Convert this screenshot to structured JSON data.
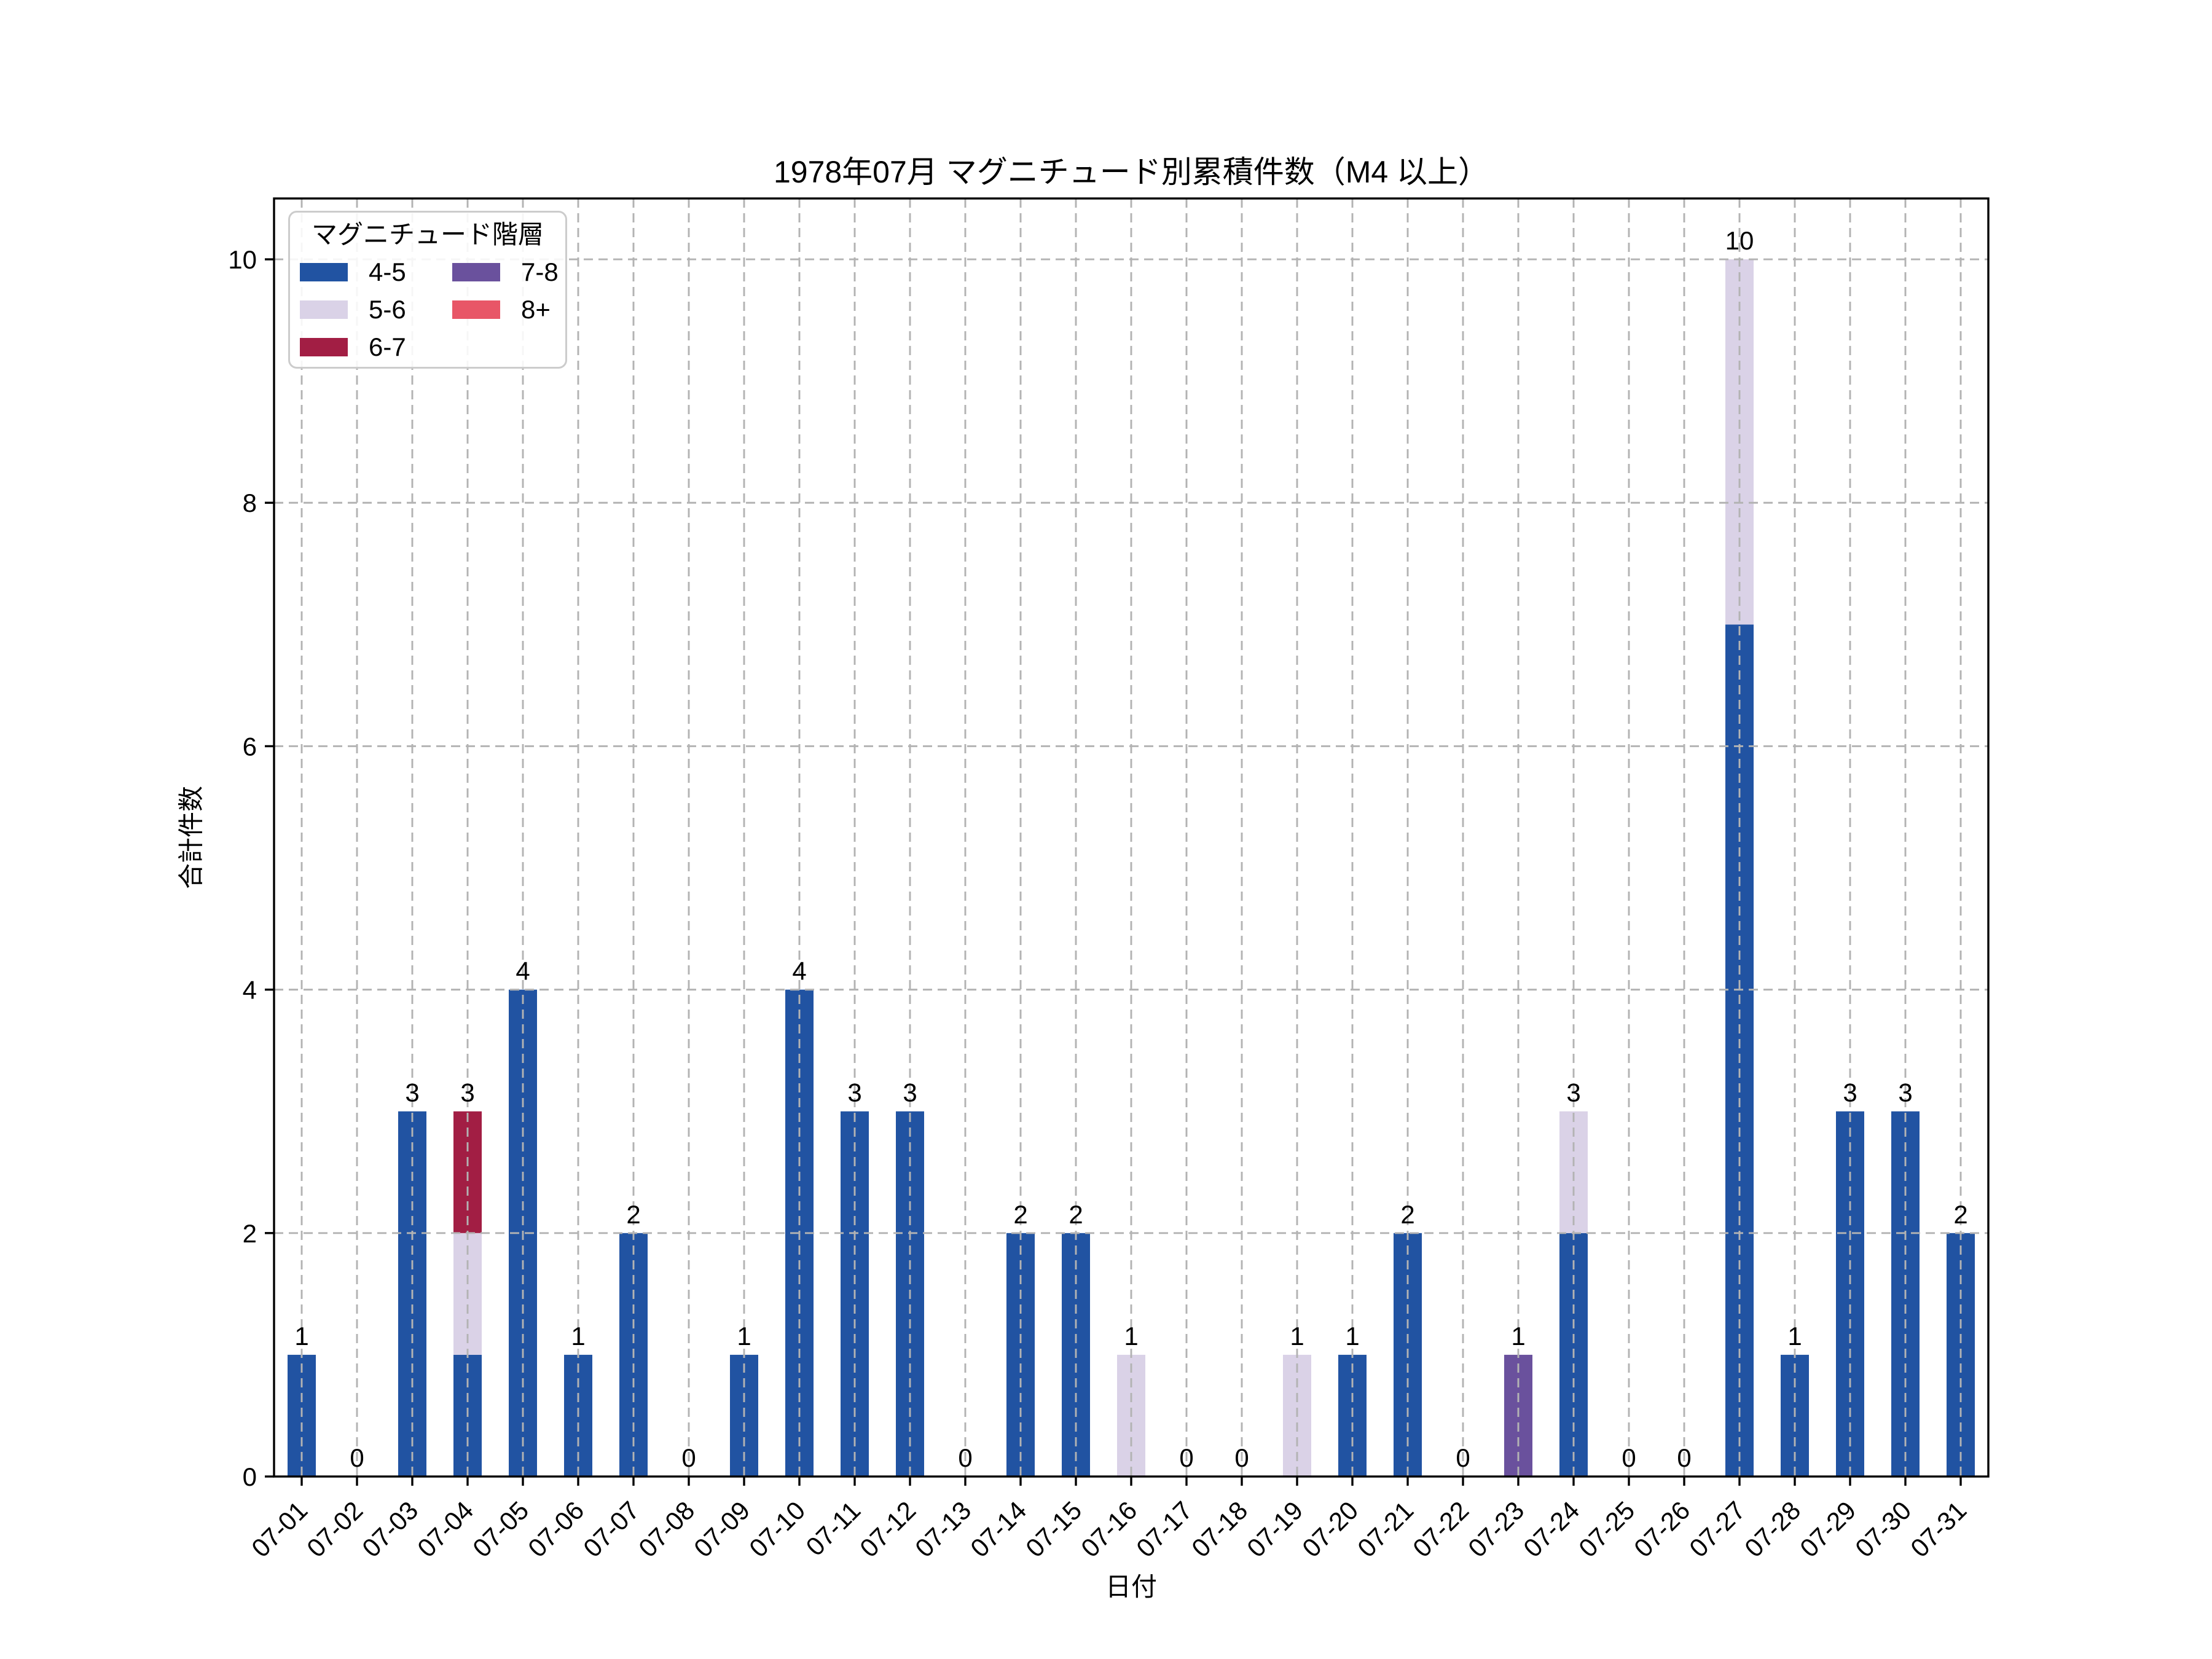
{
  "figure": {
    "title": "1978年07月 マグニチュード別累積件数（M4 以上）",
    "xlabel": "日付",
    "ylabel": "合計件数"
  },
  "legend": {
    "title": "マグニチュード階層",
    "position": "upper left",
    "columns": 2,
    "items": [
      {
        "label": "4-5",
        "color": "#2153a2"
      },
      {
        "label": "5-6",
        "color": "#dad2e7"
      },
      {
        "label": "6-7",
        "color": "#a21e44"
      },
      {
        "label": "7-8",
        "color": "#6a519d"
      },
      {
        "label": "8+",
        "color": "#e85667"
      }
    ]
  },
  "chart_data": {
    "type": "bar",
    "stacked": true,
    "title": "1978年07月 マグニチュード別累積件数（M4 以上）",
    "xlabel": "日付",
    "ylabel": "合計件数",
    "categories": [
      "07-01",
      "07-02",
      "07-03",
      "07-04",
      "07-05",
      "07-06",
      "07-07",
      "07-08",
      "07-09",
      "07-10",
      "07-11",
      "07-12",
      "07-13",
      "07-14",
      "07-15",
      "07-16",
      "07-17",
      "07-18",
      "07-19",
      "07-20",
      "07-21",
      "07-22",
      "07-23",
      "07-24",
      "07-25",
      "07-26",
      "07-27",
      "07-28",
      "07-29",
      "07-30",
      "07-31"
    ],
    "series": [
      {
        "name": "4-5",
        "color": "#2153a2",
        "values": [
          1,
          0,
          3,
          1,
          4,
          1,
          2,
          0,
          1,
          4,
          3,
          3,
          0,
          2,
          2,
          0,
          0,
          0,
          0,
          1,
          2,
          0,
          0,
          2,
          0,
          0,
          7,
          1,
          3,
          3,
          2
        ]
      },
      {
        "name": "5-6",
        "color": "#dad2e7",
        "values": [
          0,
          0,
          0,
          1,
          0,
          0,
          0,
          0,
          0,
          0,
          0,
          0,
          0,
          0,
          0,
          1,
          0,
          0,
          1,
          0,
          0,
          0,
          0,
          1,
          0,
          0,
          3,
          0,
          0,
          0,
          0
        ]
      },
      {
        "name": "6-7",
        "color": "#a21e44",
        "values": [
          0,
          0,
          0,
          1,
          0,
          0,
          0,
          0,
          0,
          0,
          0,
          0,
          0,
          0,
          0,
          0,
          0,
          0,
          0,
          0,
          0,
          0,
          0,
          0,
          0,
          0,
          0,
          0,
          0,
          0,
          0
        ]
      },
      {
        "name": "7-8",
        "color": "#6a519d",
        "values": [
          0,
          0,
          0,
          0,
          0,
          0,
          0,
          0,
          0,
          0,
          0,
          0,
          0,
          0,
          0,
          0,
          0,
          0,
          0,
          0,
          0,
          0,
          1,
          0,
          0,
          0,
          0,
          0,
          0,
          0,
          0
        ]
      },
      {
        "name": "8+",
        "color": "#e85667",
        "values": [
          0,
          0,
          0,
          0,
          0,
          0,
          0,
          0,
          0,
          0,
          0,
          0,
          0,
          0,
          0,
          0,
          0,
          0,
          0,
          0,
          0,
          0,
          0,
          0,
          0,
          0,
          0,
          0,
          0,
          0,
          0
        ]
      }
    ],
    "totals": [
      1,
      0,
      3,
      3,
      4,
      1,
      2,
      0,
      1,
      4,
      3,
      3,
      0,
      2,
      2,
      1,
      0,
      0,
      1,
      1,
      2,
      0,
      1,
      3,
      0,
      0,
      10,
      1,
      3,
      3,
      2
    ],
    "yticks": [
      0,
      2,
      4,
      6,
      8,
      10
    ],
    "ylim": [
      0,
      10.5
    ],
    "grid": true,
    "gridline_color": "#b3b3b3",
    "axis_color": "#000000",
    "background": "#ffffff"
  }
}
